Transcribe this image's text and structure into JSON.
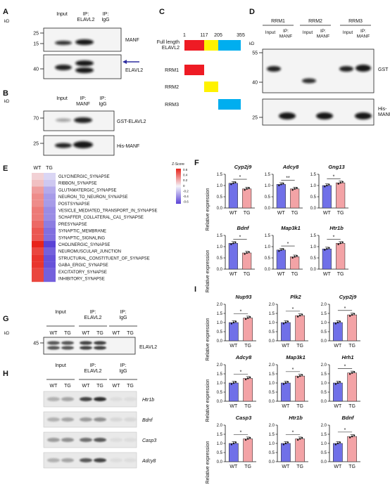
{
  "colors": {
    "wt": "#7070e8",
    "tg": "#f3a3a6",
    "rrm1": "#ee1b24",
    "rrm2": "#fff200",
    "rrm3": "#00aeef",
    "arrow": "#2e2ea0"
  },
  "panels": {
    "A": {
      "label": "A",
      "kd": "kD",
      "lanes": [
        "Input",
        "IP:\nELAVL2",
        "IP:\nIgG"
      ],
      "blot1": {
        "markers": [
          "25",
          "15"
        ],
        "target": "MANF"
      },
      "blot2": {
        "markers": [
          "40"
        ],
        "target": "ELAVL2"
      }
    },
    "B": {
      "label": "B",
      "kd": "kD",
      "lanes": [
        "Input",
        "IP:\nMANF",
        "IP:\nIgG"
      ],
      "blot1": {
        "markers": [
          "70"
        ],
        "target": "GST-ELAVL2"
      },
      "blot2": {
        "markers": [
          "25"
        ],
        "target": "His-MANF"
      }
    },
    "C": {
      "label": "C",
      "positions": [
        "1",
        "117",
        "205",
        "355"
      ],
      "rows": [
        "Full length\nELAVL2",
        "RRM1",
        "RRM2",
        "RRM3"
      ]
    },
    "D": {
      "label": "D",
      "kd": "kD",
      "groups": [
        "RRM1",
        "RRM2",
        "RRM3"
      ],
      "lanes": [
        "Input",
        "IP:\nMANF"
      ],
      "blot1": {
        "markers": [
          "55",
          "40"
        ],
        "target": "GST"
      },
      "blot2": {
        "markers": [
          "25"
        ],
        "target": "His-\nMANF"
      }
    },
    "E": {
      "label": "E",
      "columns": [
        "WT",
        "TG"
      ],
      "scale_title": "Z-Score",
      "scale_ticks": [
        "0.6",
        "0.4",
        "0.2",
        "0",
        "-0.2",
        "-0.4",
        "-0.6"
      ],
      "terms": [
        "GLYCINERGIC_SYNAPSE",
        "RIBBON_SYNAPSE",
        "GLUTAMATERGIC_SYNAPSE",
        "NEURON_TO_NEURON_SYNAPSE",
        "POSTSYNAPSE",
        "VESICLE_MEDIATED_TRANSPORT_IN_SYNAPSE",
        "SCHAFFER_COLLATERAL_CA1_SYNAPSE",
        "PRESYNAPSE",
        "SYNAPTIC_MEMBRANE",
        "SYNAPTIC_SIGNALING",
        "CHOLINERGIC_SYNAPSE",
        "NEUROMUSCULAR_JUNCTION",
        "STRUCTURAL_CONSTITUENT_OF_SYNAPSE",
        "GABA_ERGIC_SYNAPSE",
        "EXCITATORY_SYNAPSE",
        "INHIBITORY_SYNAPSE"
      ],
      "wt_scores": [
        0.1,
        0.15,
        0.25,
        0.3,
        0.3,
        0.35,
        0.35,
        0.4,
        0.45,
        0.45,
        0.6,
        0.5,
        0.55,
        0.55,
        0.5,
        0.5
      ],
      "tg_scores": [
        -0.1,
        -0.15,
        -0.25,
        -0.3,
        -0.3,
        -0.35,
        -0.35,
        -0.4,
        -0.45,
        -0.45,
        -0.6,
        -0.5,
        -0.55,
        -0.55,
        -0.5,
        -0.5
      ]
    },
    "G": {
      "label": "G",
      "kd": "kD",
      "groups": [
        "Input",
        "IP:\nELAVL2",
        "IP:\nIgG"
      ],
      "lanes": [
        "WT",
        "TG"
      ],
      "marker": "45",
      "target": "ELAVL2"
    },
    "H": {
      "label": "H",
      "groups": [
        "Input",
        "IP:\nELAVL2",
        "IP:\nIgG"
      ],
      "lanes": [
        "WT",
        "TG"
      ],
      "genes": [
        "Htr1b",
        "Bdnf",
        "Casp3",
        "Adcy8"
      ]
    },
    "F": {
      "label": "F",
      "ylabel": "Relative expression"
    },
    "I": {
      "label": "I",
      "ylabel": "Relative expression"
    }
  },
  "chart_data": [
    {
      "type": "bar",
      "panel": "F",
      "title": "Cyp2j9",
      "categories": [
        "WT",
        "TG"
      ],
      "values": [
        1.1,
        0.85
      ],
      "ylim": [
        0,
        1.5
      ],
      "yticks": [
        "0.0",
        "0.5",
        "1.0",
        "1.5"
      ],
      "sig": "*"
    },
    {
      "type": "bar",
      "panel": "F",
      "title": "Adcy8",
      "categories": [
        "WT",
        "TG"
      ],
      "values": [
        1.05,
        0.85
      ],
      "ylim": [
        0,
        1.5
      ],
      "yticks": [
        "0.0",
        "0.5",
        "1.0",
        "1.5"
      ],
      "sig": "**"
    },
    {
      "type": "bar",
      "panel": "F",
      "title": "Gng13",
      "categories": [
        "WT",
        "TG"
      ],
      "values": [
        1.0,
        1.12
      ],
      "ylim": [
        0,
        1.5
      ],
      "yticks": [
        "0.0",
        "0.5",
        "1.0",
        "1.5"
      ],
      "sig": "*"
    },
    {
      "type": "bar",
      "panel": "F",
      "title": "Bdnf",
      "categories": [
        "WT",
        "TG"
      ],
      "values": [
        1.15,
        0.72
      ],
      "ylim": [
        0,
        1.5
      ],
      "yticks": [
        "0.0",
        "0.5",
        "1.0",
        "1.5"
      ],
      "sig": "*"
    },
    {
      "type": "bar",
      "panel": "F",
      "title": "Map3k1",
      "categories": [
        "WT",
        "TG"
      ],
      "values": [
        0.85,
        0.55
      ],
      "ylim": [
        0,
        1.5
      ],
      "yticks": [
        "0.0",
        "0.5",
        "1.0",
        "1.5"
      ],
      "sig": "*"
    },
    {
      "type": "bar",
      "panel": "F",
      "title": "Htr1b",
      "categories": [
        "WT",
        "TG"
      ],
      "values": [
        0.9,
        1.15
      ],
      "ylim": [
        0,
        1.5
      ],
      "yticks": [
        "0.0",
        "0.5",
        "1.0",
        "1.5"
      ],
      "sig": "*"
    },
    {
      "type": "bar",
      "panel": "I",
      "title": "Nup93",
      "categories": [
        "WT",
        "TG"
      ],
      "values": [
        1.0,
        1.25
      ],
      "ylim": [
        0,
        2.0
      ],
      "yticks": [
        "0.0",
        "0.5",
        "1.0",
        "1.5",
        "2.0"
      ],
      "sig": "*"
    },
    {
      "type": "bar",
      "panel": "I",
      "title": "Plk2",
      "categories": [
        "WT",
        "TG"
      ],
      "values": [
        1.0,
        1.38
      ],
      "ylim": [
        0,
        2.0
      ],
      "yticks": [
        "0.0",
        "0.5",
        "1.0",
        "1.5",
        "2.0"
      ],
      "sig": "*"
    },
    {
      "type": "bar",
      "panel": "I",
      "title": "Cyp2j9",
      "categories": [
        "WT",
        "TG"
      ],
      "values": [
        1.0,
        1.42
      ],
      "ylim": [
        0,
        2.0
      ],
      "yticks": [
        "0.0",
        "0.5",
        "1.0",
        "1.5",
        "2.0"
      ],
      "sig": "*"
    },
    {
      "type": "bar",
      "panel": "I",
      "title": "Adcy8",
      "categories": [
        "WT",
        "TG"
      ],
      "values": [
        1.0,
        1.25
      ],
      "ylim": [
        0,
        2.0
      ],
      "yticks": [
        "0.0",
        "0.5",
        "1.0",
        "1.5",
        "2.0"
      ],
      "sig": "*"
    },
    {
      "type": "bar",
      "panel": "I",
      "title": "Map3k1",
      "categories": [
        "WT",
        "TG"
      ],
      "values": [
        1.0,
        1.38
      ],
      "ylim": [
        0,
        2.0
      ],
      "yticks": [
        "0.0",
        "0.5",
        "1.0",
        "1.5",
        "2.0"
      ],
      "sig": "*"
    },
    {
      "type": "bar",
      "panel": "I",
      "title": "Hrh1",
      "categories": [
        "WT",
        "TG"
      ],
      "values": [
        1.0,
        1.55
      ],
      "ylim": [
        0,
        2.0
      ],
      "yticks": [
        "0.0",
        "0.5",
        "1.0",
        "1.5",
        "2.0"
      ],
      "sig": "*"
    },
    {
      "type": "bar",
      "panel": "I",
      "title": "Casp3",
      "categories": [
        "WT",
        "TG"
      ],
      "values": [
        1.0,
        1.25
      ],
      "ylim": [
        0,
        2.0
      ],
      "yticks": [
        "0.0",
        "0.5",
        "1.0",
        "1.5",
        "2.0"
      ],
      "sig": "*"
    },
    {
      "type": "bar",
      "panel": "I",
      "title": "Htr1b",
      "categories": [
        "WT",
        "TG"
      ],
      "values": [
        1.0,
        1.25
      ],
      "ylim": [
        0,
        2.0
      ],
      "yticks": [
        "0.0",
        "0.5",
        "1.0",
        "1.5",
        "2.0"
      ],
      "sig": "*"
    },
    {
      "type": "bar",
      "panel": "I",
      "title": "Bdnf",
      "categories": [
        "WT",
        "TG"
      ],
      "values": [
        1.0,
        1.38
      ],
      "ylim": [
        0,
        2.0
      ],
      "yticks": [
        "0.0",
        "0.5",
        "1.0",
        "1.5",
        "2.0"
      ],
      "sig": "*"
    }
  ]
}
